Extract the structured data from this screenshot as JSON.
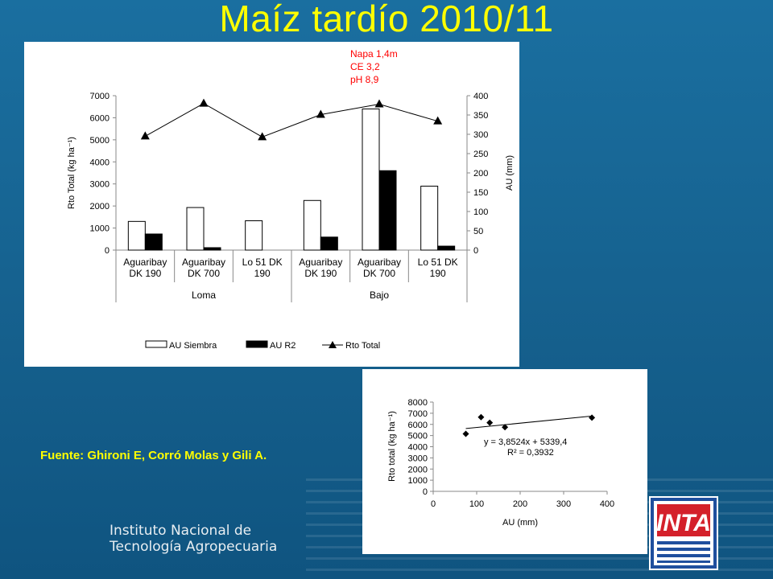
{
  "slide": {
    "title": "Maíz tardío 2010/11",
    "source": "Fuente: Ghironi E, Corró Molas y Gili A.",
    "institute": [
      "Instituto Nacional de",
      "Tecnología Agropecuaria"
    ],
    "logo_text": "INTA"
  },
  "colors": {
    "background": "#155f8c",
    "title": "#ffff00",
    "annotation": "#ff0000",
    "logo_red": "#d4202a",
    "logo_blue": "#1f4f9e"
  },
  "chart_data": [
    {
      "type": "bar",
      "title": "",
      "annotation": [
        "Napa 1,4m",
        "CE 3,2",
        "pH 8,9"
      ],
      "categories": [
        "Aguaribay DK 190",
        "Aguaribay DK 700",
        "Lo 51 DK 190",
        "Aguaribay DK 190",
        "Aguaribay DK 700",
        "Lo 51 DK 190"
      ],
      "category_lines": [
        [
          "Aguaribay",
          "DK  190"
        ],
        [
          "Aguaribay",
          "DK  700"
        ],
        [
          "Lo 51 DK",
          "190"
        ],
        [
          "Aguaribay",
          "DK  190"
        ],
        [
          "Aguaribay",
          "DK  700"
        ],
        [
          "Lo 51 DK",
          "190"
        ]
      ],
      "groups": [
        {
          "name": "Loma",
          "span": [
            0,
            2
          ]
        },
        {
          "name": "Bajo",
          "span": [
            3,
            5
          ]
        }
      ],
      "ylabel": "Rto Total (kg ha⁻¹)",
      "y2label": "AU (mm)",
      "ylim": [
        0,
        7000
      ],
      "yticks": [
        "0",
        "1000",
        "2000",
        "3000",
        "4000",
        "5000",
        "6000",
        "7000"
      ],
      "y2lim": [
        0,
        400
      ],
      "y2ticks": [
        "0",
        "50",
        "100",
        "150",
        "200",
        "250",
        "300",
        "350",
        "400"
      ],
      "grid": false,
      "legend_position": "bottom",
      "series": [
        {
          "name": "AU Siembra",
          "kind": "bar",
          "axis": "left",
          "color": "#ffffff",
          "values": [
            1300,
            1930,
            1330,
            2250,
            6400,
            2900
          ]
        },
        {
          "name": "AU R2",
          "kind": "bar",
          "axis": "left",
          "color": "#000000",
          "values": [
            730,
            110,
            0,
            590,
            3600,
            180
          ]
        },
        {
          "name": "Rto Total",
          "kind": "line",
          "axis": "right",
          "color": "#000000",
          "values": [
            295,
            380,
            293,
            351,
            378,
            334
          ]
        }
      ]
    },
    {
      "type": "scatter",
      "title": "",
      "xlabel": "AU (mm)",
      "ylabel": "Rto total (kg ha⁻¹)",
      "xlim": [
        0,
        400
      ],
      "xticks": [
        "0",
        "100",
        "200",
        "300",
        "400"
      ],
      "ylim": [
        0,
        8000
      ],
      "yticks": [
        "0",
        "1000",
        "2000",
        "3000",
        "4000",
        "5000",
        "6000",
        "7000",
        "8000"
      ],
      "points": [
        [
          75,
          5150
        ],
        [
          110,
          6650
        ],
        [
          130,
          6150
        ],
        [
          165,
          5750
        ],
        [
          365,
          6600
        ]
      ],
      "trendline": {
        "slope": 3.8524,
        "intercept": 5339.4
      },
      "equation": "y = 3,8524x + 5339,4",
      "r2": "R² = 0,3932",
      "grid": false
    }
  ]
}
